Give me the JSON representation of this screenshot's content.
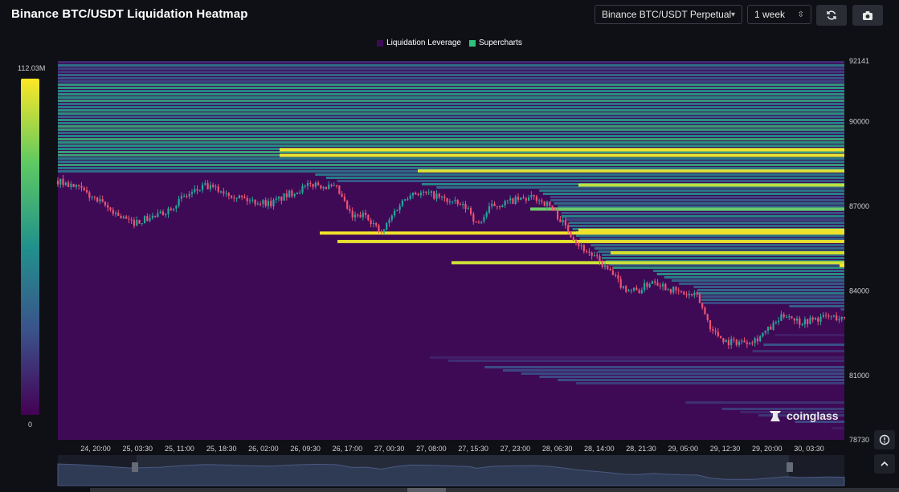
{
  "header": {
    "title": "Binance BTC/USDT Liquidation Heatmap",
    "pair_select": "Binance BTC/USDT Perpetual",
    "range_select": "1 week",
    "refresh_icon": "refresh-icon",
    "camera_icon": "camera-icon"
  },
  "colors": {
    "background": "#0e1015",
    "heat_low": "#440154",
    "heat_mid": "#21918c",
    "heat_high": "#fde725",
    "candle_up": "#26a69a",
    "candle_down": "#ef5372"
  },
  "watermark": "coinglass",
  "side_buttons": [
    "reset-icon",
    "chevron-up-icon"
  ],
  "chart_data": {
    "type": "heatmap",
    "title": "",
    "legend": [
      "Liquidation Leverage",
      "Supercharts"
    ],
    "legend_colors": [
      "#3b0a55",
      "#2ec27e"
    ],
    "color_scale": {
      "max_label": "112.03M",
      "min_label": "0"
    },
    "y_ticks": [
      "92141",
      "90000",
      "87000",
      "84000",
      "81000",
      "78730"
    ],
    "ylim": [
      78730,
      92141
    ],
    "x_ticks": [
      "24, 20:00",
      "25, 03:30",
      "25, 11:00",
      "25, 18:30",
      "26, 02:00",
      "26, 09:30",
      "26, 17:00",
      "27, 00:30",
      "27, 08:00",
      "27, 15:30",
      "27, 23:00",
      "28, 06:30",
      "28, 14:00",
      "28, 21:30",
      "29, 05:00",
      "29, 12:30",
      "29, 20:00",
      "30, 03:30"
    ],
    "price_series": [
      {
        "t": 0,
        "p": 87900
      },
      {
        "t": 3,
        "p": 87600
      },
      {
        "t": 7,
        "p": 86900
      },
      {
        "t": 10,
        "p": 86400
      },
      {
        "t": 14,
        "p": 86700
      },
      {
        "t": 17,
        "p": 87300
      },
      {
        "t": 20,
        "p": 87700
      },
      {
        "t": 23,
        "p": 87500
      },
      {
        "t": 26,
        "p": 87200
      },
      {
        "t": 29,
        "p": 87100
      },
      {
        "t": 32,
        "p": 87500
      },
      {
        "t": 35,
        "p": 87800
      },
      {
        "t": 38,
        "p": 87600
      },
      {
        "t": 40,
        "p": 86600
      },
      {
        "t": 42,
        "p": 86700
      },
      {
        "t": 44,
        "p": 86000
      },
      {
        "t": 46,
        "p": 86900
      },
      {
        "t": 48,
        "p": 87500
      },
      {
        "t": 51,
        "p": 87400
      },
      {
        "t": 54,
        "p": 87100
      },
      {
        "t": 56,
        "p": 86900
      },
      {
        "t": 57,
        "p": 86300
      },
      {
        "t": 59,
        "p": 87000
      },
      {
        "t": 62,
        "p": 87200
      },
      {
        "t": 65,
        "p": 87300
      },
      {
        "t": 67,
        "p": 87000
      },
      {
        "t": 69,
        "p": 86300
      },
      {
        "t": 71,
        "p": 85600
      },
      {
        "t": 73,
        "p": 85200
      },
      {
        "t": 75,
        "p": 84700
      },
      {
        "t": 77,
        "p": 84100
      },
      {
        "t": 79,
        "p": 84000
      },
      {
        "t": 81,
        "p": 84400
      },
      {
        "t": 83,
        "p": 84100
      },
      {
        "t": 85,
        "p": 83900
      },
      {
        "t": 87,
        "p": 83800
      },
      {
        "t": 89,
        "p": 82600
      },
      {
        "t": 91,
        "p": 82200
      },
      {
        "t": 93,
        "p": 82200
      },
      {
        "t": 95,
        "p": 82300
      },
      {
        "t": 97,
        "p": 82700
      },
      {
        "t": 99,
        "p": 83200
      },
      {
        "t": 101,
        "p": 82900
      },
      {
        "t": 103,
        "p": 83000
      },
      {
        "t": 105,
        "p": 83100
      },
      {
        "t": 107,
        "p": 83000
      }
    ]
  }
}
